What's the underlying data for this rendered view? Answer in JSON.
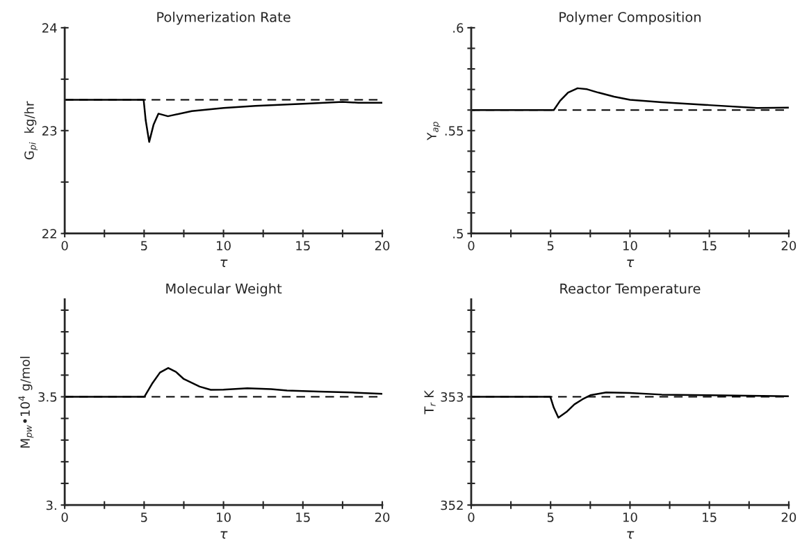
{
  "chart_data": [
    {
      "type": "line",
      "title": "Polymerization Rate",
      "xlabel": "τ",
      "ylabel": "G$_{pi}$  kg/hr",
      "xlim": [
        0,
        20
      ],
      "ylim": [
        22,
        24
      ],
      "xticks": [
        0,
        {
          "value": 2.5,
          "label": null
        },
        5,
        {
          "value": 7.5,
          "label": null
        },
        10,
        {
          "value": 12.5,
          "label": null
        },
        15,
        {
          "value": 17.5,
          "label": null
        },
        20
      ],
      "yticks": [
        22,
        {
          "value": 22.5,
          "label": null
        },
        23,
        {
          "value": 23.5,
          "label": null
        },
        24
      ],
      "series": [
        {
          "color": "#000000",
          "x": [
            0,
            4.97,
            5.1,
            5.32,
            5.6,
            5.9,
            6.5,
            8,
            10,
            12,
            15,
            17.5,
            18.5,
            20
          ],
          "values": [
            23.3,
            23.3,
            23.1,
            22.89,
            23.06,
            23.165,
            23.14,
            23.19,
            23.22,
            23.24,
            23.26,
            23.28,
            23.27,
            23.27
          ]
        }
      ],
      "ref_lines": [
        {
          "axis": "y",
          "value": 23.3,
          "line_style": "dashed",
          "color": "#000000"
        }
      ]
    },
    {
      "type": "line",
      "title": "Polymer Composition",
      "xlabel": "τ",
      "ylabel": "Y$_{ap}$",
      "xlim": [
        0,
        20
      ],
      "ylim": [
        0.5,
        0.6
      ],
      "xticks": [
        0,
        {
          "value": 2.5,
          "label": null
        },
        5,
        {
          "value": 7.5,
          "label": null
        },
        10,
        {
          "value": 12.5,
          "label": null
        },
        15,
        {
          "value": 17.5,
          "label": null
        },
        20
      ],
      "yticks": [
        {
          "value": 0.5,
          "label": ".5"
        },
        {
          "value": 0.51,
          "label": null
        },
        {
          "value": 0.52,
          "label": null
        },
        {
          "value": 0.53,
          "label": null
        },
        {
          "value": 0.54,
          "label": null
        },
        {
          "value": 0.55,
          "label": ".55"
        },
        {
          "value": 0.56,
          "label": null
        },
        {
          "value": 0.57,
          "label": null
        },
        {
          "value": 0.58,
          "label": null
        },
        {
          "value": 0.59,
          "label": null
        },
        {
          "value": 0.6,
          "label": ".6"
        }
      ],
      "series": [
        {
          "color": "#000000",
          "x": [
            0,
            5.2,
            5.6,
            6.1,
            6.7,
            7.3,
            8,
            9,
            10,
            12,
            15,
            18,
            20
          ],
          "values": [
            0.56,
            0.56,
            0.5645,
            0.5685,
            0.5706,
            0.5701,
            0.5685,
            0.5665,
            0.565,
            0.5638,
            0.5624,
            0.561,
            0.5612
          ]
        }
      ],
      "ref_lines": [
        {
          "axis": "y",
          "value": 0.56,
          "line_style": "dashed",
          "color": "#000000"
        }
      ]
    },
    {
      "type": "line",
      "title": "Molecular Weight",
      "xlabel": "τ",
      "ylabel": "M$_{pw}$•10$^{4}$ g/mol",
      "xlim": [
        0,
        20
      ],
      "ylim": [
        3.0,
        3.95
      ],
      "xticks": [
        0,
        {
          "value": 2.5,
          "label": null
        },
        5,
        {
          "value": 7.5,
          "label": null
        },
        10,
        {
          "value": 12.5,
          "label": null
        },
        15,
        {
          "value": 17.5,
          "label": null
        },
        20
      ],
      "yticks": [
        {
          "value": 3.0,
          "label": "3."
        },
        {
          "value": 3.1,
          "label": null
        },
        {
          "value": 3.2,
          "label": null
        },
        {
          "value": 3.3,
          "label": null
        },
        {
          "value": 3.4,
          "label": null
        },
        3.5,
        {
          "value": 3.6,
          "label": null
        },
        {
          "value": 3.7,
          "label": null
        },
        {
          "value": 3.8,
          "label": null
        },
        {
          "value": 3.9,
          "label": null
        }
      ],
      "series": [
        {
          "color": "#000000",
          "x": [
            0,
            5.02,
            5.5,
            6,
            6.52,
            7,
            7.5,
            8.5,
            9.2,
            10,
            11.5,
            13,
            14,
            16,
            18,
            20
          ],
          "values": [
            3.5,
            3.5,
            3.56,
            3.612,
            3.633,
            3.615,
            3.582,
            3.547,
            3.532,
            3.533,
            3.539,
            3.535,
            3.529,
            3.524,
            3.52,
            3.514
          ]
        }
      ],
      "ref_lines": [
        {
          "axis": "y",
          "value": 3.5,
          "line_style": "dashed",
          "color": "#000000"
        }
      ]
    },
    {
      "type": "line",
      "title": "Reactor Temperature",
      "xlabel": "τ",
      "ylabel": "T$_{r}$ K",
      "xlim": [
        0,
        20
      ],
      "ylim": [
        352,
        353.9
      ],
      "xticks": [
        0,
        {
          "value": 2.5,
          "label": null
        },
        5,
        {
          "value": 7.5,
          "label": null
        },
        10,
        {
          "value": 12.5,
          "label": null
        },
        15,
        {
          "value": 17.5,
          "label": null
        },
        20
      ],
      "yticks": [
        352,
        {
          "value": 352.2,
          "label": null
        },
        {
          "value": 352.4,
          "label": null
        },
        {
          "value": 352.6,
          "label": null
        },
        {
          "value": 352.8,
          "label": null
        },
        353,
        {
          "value": 353.2,
          "label": null
        },
        {
          "value": 353.4,
          "label": null
        },
        {
          "value": 353.6,
          "label": null
        },
        {
          "value": 353.8,
          "label": null
        }
      ],
      "series": [
        {
          "color": "#000000",
          "x": [
            0,
            4.98,
            5.2,
            5.49,
            6,
            6.5,
            7,
            7.5,
            8.5,
            10,
            12,
            15,
            20
          ],
          "values": [
            353,
            353,
            352.9,
            352.807,
            352.86,
            352.93,
            352.976,
            353.014,
            353.04,
            353.035,
            353.02,
            353.014,
            353.005
          ]
        }
      ],
      "ref_lines": [
        {
          "axis": "y",
          "value": 353,
          "line_style": "dashed",
          "color": "#000000"
        }
      ]
    }
  ]
}
